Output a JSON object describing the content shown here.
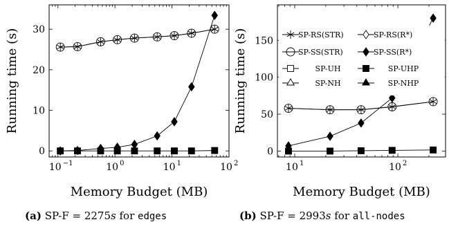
{
  "chart_data": [
    {
      "type": "line",
      "panel": "a",
      "caption": {
        "label": "(a)",
        "prefix": "SP-F = 2275",
        "unit": "s",
        "mid": " for ",
        "dataset": "edges"
      },
      "xlabel": "Memory Budget (MB)",
      "ylabel": "Running time (s)",
      "xscale": "log",
      "xlim": [
        0.07,
        100
      ],
      "ylim": [
        -1.5,
        36
      ],
      "xticks": [
        {
          "v": 0.1,
          "base": "10",
          "exp": "−1"
        },
        {
          "v": 1,
          "base": "10",
          "exp": "0"
        },
        {
          "v": 10,
          "base": "10",
          "exp": "1"
        },
        {
          "v": 100,
          "base": "10",
          "exp": "2"
        }
      ],
      "yticks": [
        0,
        10,
        20,
        30
      ],
      "series": [
        {
          "name": "SP-RS(STR)",
          "marker": "asterisk",
          "x": [
            0.11,
            0.22,
            0.56,
            1.1,
            2.2,
            5.5,
            11,
            22,
            56
          ],
          "y": [
            25.6,
            25.7,
            26.9,
            27.4,
            27.8,
            28.1,
            28.4,
            29.0,
            30.0
          ]
        },
        {
          "name": "SP-SS(STR)",
          "marker": "circle",
          "x": [
            0.11,
            0.22,
            0.56,
            1.1,
            2.2,
            5.5,
            11,
            22,
            56
          ],
          "y": [
            25.6,
            25.7,
            26.9,
            27.4,
            27.8,
            28.1,
            28.4,
            29.0,
            30.0
          ]
        },
        {
          "name": "SP-SS(R*)",
          "marker": "diamond-filled",
          "x": [
            0.11,
            0.22,
            0.56,
            1.1,
            2.2,
            5.5,
            11,
            22,
            56
          ],
          "y": [
            0.0,
            0.1,
            0.6,
            0.9,
            1.6,
            3.7,
            7.2,
            15.8,
            33.4
          ]
        },
        {
          "name": "SP-UHP",
          "marker": "square-filled",
          "x": [
            0.11,
            0.22,
            0.56,
            1.1,
            2.2,
            5.5,
            11,
            22,
            56
          ],
          "y": [
            0,
            0,
            0,
            0,
            0,
            0,
            0,
            0,
            0.1
          ]
        }
      ]
    },
    {
      "type": "line",
      "panel": "b",
      "caption": {
        "label": "(b)",
        "prefix": "SP-F = 2993",
        "unit": "s",
        "mid": " for ",
        "dataset": "all-nodes"
      },
      "xlabel": "Memory Budget (MB)",
      "ylabel": "Running time (s)",
      "xscale": "log",
      "xlim": [
        6.8,
        290
      ],
      "ylim": [
        -8,
        198
      ],
      "xticks": [
        {
          "v": 10,
          "base": "10",
          "exp": "1"
        },
        {
          "v": 100,
          "base": "10",
          "exp": "2"
        }
      ],
      "yticks": [
        0,
        50,
        100,
        150
      ],
      "legend": {
        "placement": "inside-right",
        "entries": [
          {
            "name": "SP-RS(STR)",
            "marker": "asterisk"
          },
          {
            "name": "SP-RS(R*)",
            "marker": "diamond"
          },
          {
            "name": "SP-SS(STR)",
            "marker": "circle"
          },
          {
            "name": "SP-SS(R*)",
            "marker": "diamond-filled"
          },
          {
            "name": "SP-UH",
            "marker": "square"
          },
          {
            "name": "SP-UHP",
            "marker": "square-filled"
          },
          {
            "name": "SP-NH",
            "marker": "triangle"
          },
          {
            "name": "SP-NHP",
            "marker": "triangle-filled"
          }
        ]
      },
      "series": [
        {
          "name": "SP-RS(STR)",
          "marker": "asterisk",
          "x": [
            8.7,
            22,
            44,
            88,
            220
          ],
          "y": [
            58,
            56,
            56,
            60,
            67
          ]
        },
        {
          "name": "SP-SS(STR)",
          "marker": "circle",
          "x": [
            8.7,
            22,
            44,
            88,
            220
          ],
          "y": [
            58,
            56,
            56,
            60,
            67
          ]
        },
        {
          "name": "SP-SS(R*)",
          "marker": "diamond-filled",
          "x": [
            8.7,
            22,
            44,
            88,
            220
          ],
          "y": [
            7,
            20,
            38,
            72,
            180
          ]
        },
        {
          "name": "SP-UHP",
          "marker": "square-filled",
          "x": [
            8.7,
            22,
            44,
            88,
            220
          ],
          "y": [
            0,
            0,
            0.5,
            1,
            1.5
          ]
        }
      ]
    }
  ]
}
